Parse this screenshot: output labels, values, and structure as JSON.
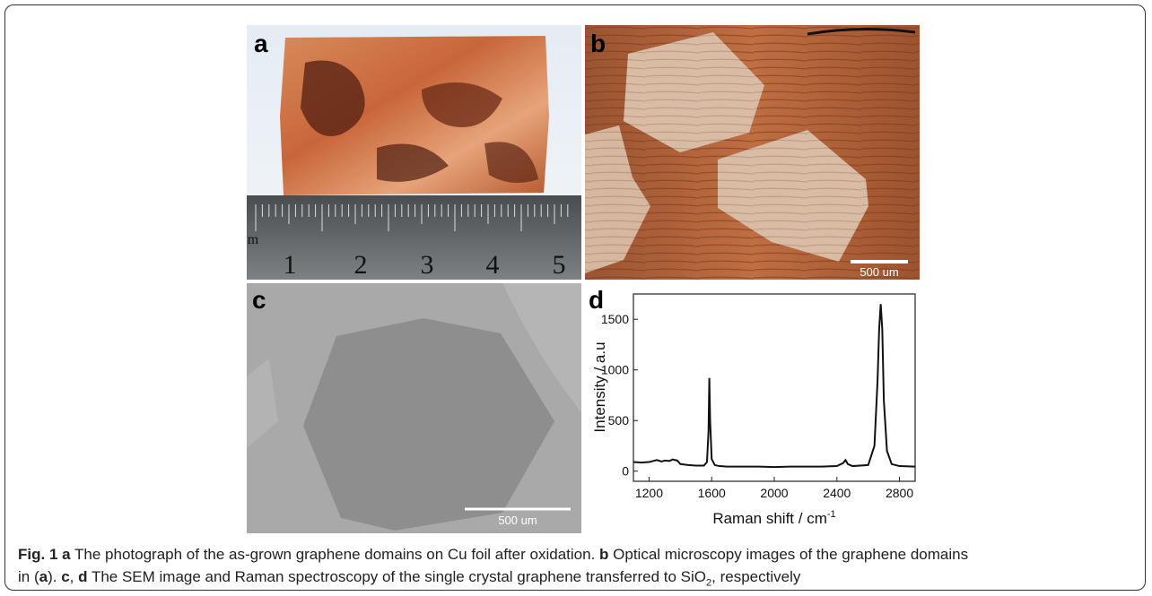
{
  "figure": {
    "panel_labels": [
      "a",
      "b",
      "c",
      "d"
    ],
    "ruler_numbers": [
      "m",
      "1",
      "2",
      "3",
      "4",
      "5"
    ],
    "scale_bar_b": "500 um",
    "scale_bar_c": "500 um"
  },
  "chart_data": {
    "type": "line",
    "xlabel": "Raman shift / cm",
    "xlabel_sup": "-1",
    "ylabel": "Intensity / a.u",
    "color": "#111111",
    "x": [
      1100,
      1150,
      1200,
      1250,
      1280,
      1300,
      1330,
      1350,
      1380,
      1400,
      1450,
      1500,
      1550,
      1570,
      1580,
      1585,
      1590,
      1600,
      1620,
      1650,
      1700,
      1800,
      1900,
      2000,
      2100,
      2200,
      2300,
      2400,
      2440,
      2455,
      2470,
      2500,
      2600,
      2640,
      2660,
      2670,
      2680,
      2690,
      2700,
      2720,
      2750,
      2800,
      2900
    ],
    "y": [
      90,
      85,
      90,
      110,
      95,
      105,
      100,
      115,
      105,
      70,
      60,
      55,
      55,
      90,
      400,
      920,
      500,
      120,
      60,
      50,
      45,
      45,
      45,
      40,
      45,
      45,
      45,
      50,
      80,
      110,
      70,
      50,
      60,
      250,
      900,
      1400,
      1650,
      1400,
      700,
      200,
      70,
      50,
      45
    ],
    "xlim": [
      1100,
      2900
    ],
    "ylim": [
      -100,
      1750
    ],
    "xticks": [
      1200,
      1600,
      2000,
      2400,
      2800
    ],
    "yticks": [
      0,
      500,
      1000,
      1500
    ]
  },
  "caption": {
    "parts": [
      "Fig. 1",
      "a",
      "The photograph of the as-grown graphene domains on Cu foil after oxidation.",
      "b",
      "Optical microscopy images of the graphene domains",
      "in (",
      "a",
      "). ",
      "c",
      ", ",
      "d",
      "The SEM image and Raman spectroscopy of the single crystal graphene transferred to SiO",
      "2",
      ", respectively"
    ]
  }
}
